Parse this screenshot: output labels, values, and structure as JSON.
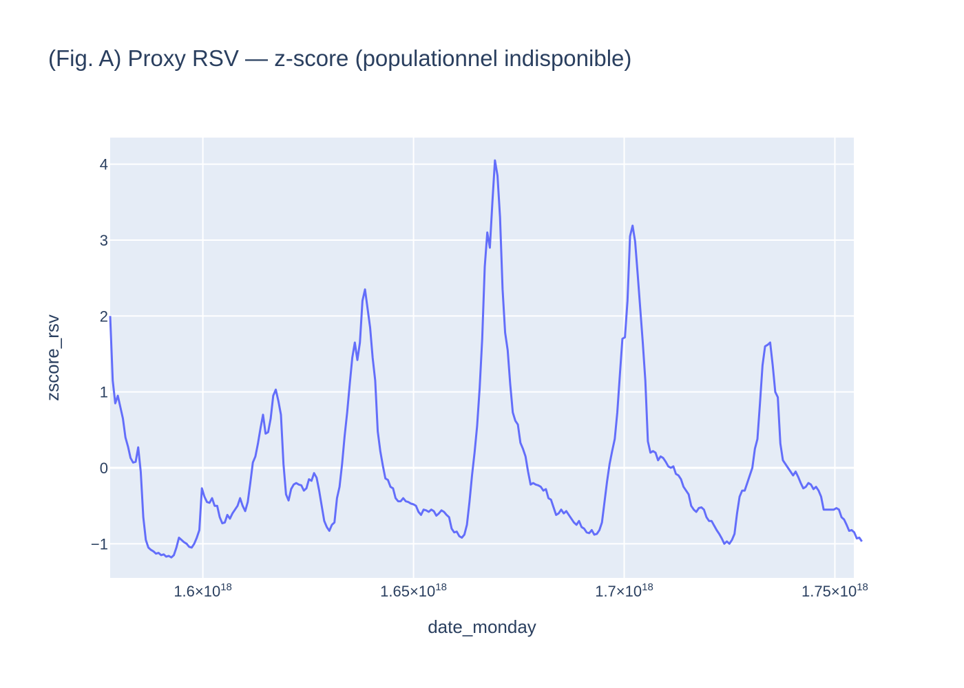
{
  "chart_data": {
    "type": "line",
    "title": "(Fig. A) Proxy RSV — z-score (populationnel indisponible)",
    "xlabel": "date_monday",
    "ylabel": "zscore_rsv",
    "xlim": [
      1.578e+18,
      1.7545e+18
    ],
    "ylim": [
      -1.45,
      4.35
    ],
    "x_ticks": [
      {
        "value": 1.6e+18,
        "mantissa": "1.6",
        "exp": "18"
      },
      {
        "value": 1.65e+18,
        "mantissa": "1.65",
        "exp": "18"
      },
      {
        "value": 1.7e+18,
        "mantissa": "1.7",
        "exp": "18"
      },
      {
        "value": 1.75e+18,
        "mantissa": "1.75",
        "exp": "18"
      }
    ],
    "y_ticks": [
      {
        "value": -1,
        "label": "−1"
      },
      {
        "value": 0,
        "label": "0"
      },
      {
        "value": 1,
        "label": "1"
      },
      {
        "value": 2,
        "label": "2"
      },
      {
        "value": 3,
        "label": "3"
      },
      {
        "value": 4,
        "label": "4"
      }
    ],
    "grid": true,
    "colors": {
      "line": "#636efa",
      "plot_bg": "#e5ecf6",
      "grid": "#ffffff",
      "text": "#2a3f5f"
    },
    "series": [
      {
        "x_start": 1.578e+18,
        "x_step": 604800000000000.0,
        "values": [
          2.0,
          1.15,
          0.85,
          0.95,
          0.8,
          0.65,
          0.4,
          0.28,
          0.13,
          0.07,
          0.08,
          0.27,
          -0.05,
          -0.65,
          -0.95,
          -1.05,
          -1.08,
          -1.1,
          -1.13,
          -1.12,
          -1.15,
          -1.14,
          -1.17,
          -1.16,
          -1.18,
          -1.15,
          -1.05,
          -0.92,
          -0.95,
          -0.98,
          -1.0,
          -1.04,
          -1.05,
          -1.0,
          -0.92,
          -0.82,
          -0.27,
          -0.38,
          -0.45,
          -0.46,
          -0.4,
          -0.5,
          -0.5,
          -0.65,
          -0.73,
          -0.72,
          -0.62,
          -0.67,
          -0.6,
          -0.55,
          -0.5,
          -0.4,
          -0.5,
          -0.57,
          -0.45,
          -0.2,
          0.07,
          0.15,
          0.32,
          0.52,
          0.7,
          0.45,
          0.47,
          0.65,
          0.95,
          1.03,
          0.88,
          0.7,
          0.05,
          -0.35,
          -0.43,
          -0.28,
          -0.22,
          -0.2,
          -0.22,
          -0.23,
          -0.3,
          -0.27,
          -0.15,
          -0.17,
          -0.07,
          -0.13,
          -0.3,
          -0.5,
          -0.7,
          -0.78,
          -0.83,
          -0.75,
          -0.72,
          -0.4,
          -0.25,
          0.05,
          0.42,
          0.73,
          1.1,
          1.45,
          1.65,
          1.42,
          1.65,
          2.2,
          2.35,
          2.1,
          1.85,
          1.45,
          1.15,
          0.48,
          0.22,
          0.03,
          -0.14,
          -0.16,
          -0.25,
          -0.27,
          -0.4,
          -0.44,
          -0.44,
          -0.4,
          -0.44,
          -0.45,
          -0.47,
          -0.48,
          -0.5,
          -0.58,
          -0.62,
          -0.55,
          -0.56,
          -0.58,
          -0.55,
          -0.57,
          -0.63,
          -0.6,
          -0.56,
          -0.58,
          -0.62,
          -0.65,
          -0.8,
          -0.85,
          -0.84,
          -0.9,
          -0.92,
          -0.88,
          -0.75,
          -0.45,
          -0.1,
          0.2,
          0.55,
          1.05,
          1.7,
          2.65,
          3.1,
          2.9,
          3.5,
          4.05,
          3.85,
          3.3,
          2.35,
          1.78,
          1.55,
          1.1,
          0.73,
          0.62,
          0.57,
          0.33,
          0.25,
          0.15,
          -0.05,
          -0.22,
          -0.2,
          -0.22,
          -0.23,
          -0.25,
          -0.3,
          -0.28,
          -0.4,
          -0.42,
          -0.52,
          -0.62,
          -0.6,
          -0.55,
          -0.6,
          -0.57,
          -0.62,
          -0.67,
          -0.72,
          -0.75,
          -0.7,
          -0.78,
          -0.8,
          -0.85,
          -0.86,
          -0.82,
          -0.88,
          -0.87,
          -0.82,
          -0.72,
          -0.45,
          -0.18,
          0.05,
          0.22,
          0.38,
          0.73,
          1.22,
          1.7,
          1.72,
          2.2,
          3.05,
          3.19,
          2.98,
          2.55,
          2.1,
          1.65,
          1.15,
          0.35,
          0.2,
          0.22,
          0.2,
          0.1,
          0.15,
          0.13,
          0.08,
          0.02,
          0.0,
          0.02,
          -0.08,
          -0.1,
          -0.15,
          -0.25,
          -0.3,
          -0.35,
          -0.5,
          -0.55,
          -0.58,
          -0.53,
          -0.52,
          -0.55,
          -0.65,
          -0.7,
          -0.7,
          -0.76,
          -0.82,
          -0.87,
          -0.93,
          -1.0,
          -0.97,
          -1.0,
          -0.95,
          -0.87,
          -0.6,
          -0.38,
          -0.3,
          -0.3,
          -0.2,
          -0.1,
          0.0,
          0.25,
          0.38,
          0.85,
          1.35,
          1.6,
          1.62,
          1.65,
          1.35,
          1.0,
          0.93,
          0.32,
          0.1,
          0.05,
          0.0,
          -0.05,
          -0.1,
          -0.05,
          -0.12,
          -0.2,
          -0.27,
          -0.25,
          -0.2,
          -0.22,
          -0.28,
          -0.25,
          -0.3,
          -0.38,
          -0.55,
          -0.55,
          -0.55,
          -0.55,
          -0.55,
          -0.53,
          -0.55,
          -0.65,
          -0.68,
          -0.75,
          -0.83,
          -0.82,
          -0.85,
          -0.93,
          -0.92,
          -0.97
        ]
      }
    ]
  }
}
